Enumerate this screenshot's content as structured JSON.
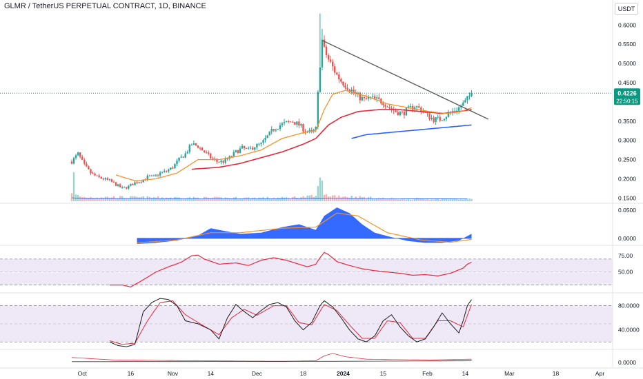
{
  "header": {
    "title": "GLMR / TetherUS PERPETUAL CONTRACT, 1D, BINANCE",
    "currency": "USDT"
  },
  "price_badge": {
    "price": "0.4226",
    "countdown": "22:50:15",
    "color": "#089981"
  },
  "colors": {
    "up": "#26a69a",
    "down": "#ef5350",
    "ema_fast": "#f5922a",
    "ema_slow": "#e8283a",
    "ema_long": "#2962ff",
    "trendline": "#5d5d5d",
    "macd": "#2962ff",
    "rsi": "#e8283a",
    "stoch_k": "#1a1a1a",
    "stoch_d": "#e8283a",
    "band_fill": "#efe8f7"
  },
  "chart_data": [
    {
      "type": "candlestick",
      "y_ticks": [
        "0.6000",
        "0.5500",
        "0.5000",
        "0.4500",
        "0.3500",
        "0.3000",
        "0.2500",
        "0.2000",
        "0.1500"
      ],
      "ylim": [
        0.14,
        0.64
      ],
      "x_ticks": [
        {
          "label": "Oct",
          "bold": false
        },
        {
          "label": "16",
          "bold": false
        },
        {
          "label": "Nov",
          "bold": false
        },
        {
          "label": "14",
          "bold": false
        },
        {
          "label": "Dec",
          "bold": false
        },
        {
          "label": "18",
          "bold": false
        },
        {
          "label": "2024",
          "bold": true
        },
        {
          "label": "15",
          "bold": false
        },
        {
          "label": "Feb",
          "bold": false
        },
        {
          "label": "14",
          "bold": false
        },
        {
          "label": "Mar",
          "bold": false
        },
        {
          "label": "18",
          "bold": false
        },
        {
          "label": "Apr",
          "bold": false
        }
      ],
      "last_price": 0.4226,
      "close_points": [
        [
          0,
          0.245
        ],
        [
          3,
          0.265
        ],
        [
          6,
          0.235
        ],
        [
          9,
          0.215
        ],
        [
          12,
          0.205
        ],
        [
          15,
          0.2
        ],
        [
          18,
          0.195
        ],
        [
          21,
          0.185
        ],
        [
          24,
          0.175
        ],
        [
          27,
          0.18
        ],
        [
          30,
          0.19
        ],
        [
          33,
          0.195
        ],
        [
          36,
          0.205
        ],
        [
          39,
          0.205
        ],
        [
          42,
          0.215
        ],
        [
          45,
          0.22
        ],
        [
          48,
          0.23
        ],
        [
          51,
          0.25
        ],
        [
          54,
          0.265
        ],
        [
          57,
          0.29
        ],
        [
          60,
          0.285
        ],
        [
          63,
          0.27
        ],
        [
          66,
          0.255
        ],
        [
          69,
          0.245
        ],
        [
          72,
          0.245
        ],
        [
          75,
          0.255
        ],
        [
          78,
          0.27
        ],
        [
          81,
          0.28
        ],
        [
          84,
          0.275
        ],
        [
          87,
          0.285
        ],
        [
          90,
          0.29
        ],
        [
          93,
          0.31
        ],
        [
          96,
          0.33
        ],
        [
          99,
          0.34
        ],
        [
          102,
          0.345
        ],
        [
          105,
          0.35
        ],
        [
          108,
          0.34
        ],
        [
          111,
          0.325
        ],
        [
          114,
          0.32
        ],
        [
          116,
          0.33
        ],
        [
          117,
          0.42
        ],
        [
          118,
          0.5
        ],
        [
          119,
          0.56
        ],
        [
          120,
          0.535
        ],
        [
          122,
          0.51
        ],
        [
          124,
          0.49
        ],
        [
          126,
          0.47
        ],
        [
          128,
          0.455
        ],
        [
          130,
          0.445
        ],
        [
          133,
          0.43
        ],
        [
          136,
          0.415
        ],
        [
          139,
          0.405
        ],
        [
          142,
          0.41
        ],
        [
          145,
          0.405
        ],
        [
          148,
          0.4
        ],
        [
          151,
          0.385
        ],
        [
          154,
          0.375
        ],
        [
          157,
          0.37
        ],
        [
          160,
          0.38
        ],
        [
          163,
          0.39
        ],
        [
          166,
          0.38
        ],
        [
          169,
          0.365
        ],
        [
          172,
          0.355
        ],
        [
          175,
          0.355
        ],
        [
          178,
          0.365
        ],
        [
          181,
          0.375
        ],
        [
          184,
          0.385
        ],
        [
          187,
          0.4
        ],
        [
          189,
          0.415
        ],
        [
          190,
          0.4226
        ]
      ],
      "ema_fast_points": [
        [
          21,
          0.21
        ],
        [
          30,
          0.195
        ],
        [
          40,
          0.2
        ],
        [
          50,
          0.215
        ],
        [
          60,
          0.25
        ],
        [
          70,
          0.25
        ],
        [
          80,
          0.26
        ],
        [
          90,
          0.275
        ],
        [
          100,
          0.305
        ],
        [
          110,
          0.32
        ],
        [
          116,
          0.325
        ],
        [
          120,
          0.38
        ],
        [
          124,
          0.42
        ],
        [
          130,
          0.43
        ],
        [
          140,
          0.415
        ],
        [
          150,
          0.395
        ],
        [
          160,
          0.385
        ],
        [
          170,
          0.375
        ],
        [
          178,
          0.37
        ],
        [
          185,
          0.375
        ],
        [
          190,
          0.385
        ]
      ],
      "ema_slow_points": [
        [
          57,
          0.225
        ],
        [
          70,
          0.23
        ],
        [
          80,
          0.24
        ],
        [
          90,
          0.255
        ],
        [
          100,
          0.27
        ],
        [
          110,
          0.29
        ],
        [
          116,
          0.305
        ],
        [
          122,
          0.34
        ],
        [
          128,
          0.36
        ],
        [
          136,
          0.375
        ],
        [
          146,
          0.38
        ],
        [
          156,
          0.38
        ],
        [
          166,
          0.375
        ],
        [
          176,
          0.37
        ],
        [
          184,
          0.375
        ],
        [
          190,
          0.38
        ]
      ],
      "ema_long_points": [
        [
          133,
          0.305
        ],
        [
          140,
          0.315
        ],
        [
          150,
          0.32
        ],
        [
          160,
          0.325
        ],
        [
          170,
          0.33
        ],
        [
          180,
          0.335
        ],
        [
          190,
          0.34
        ]
      ],
      "trendline": [
        [
          119,
          0.56
        ],
        [
          198,
          0.355
        ]
      ],
      "volume_points": [
        [
          0,
          0.25
        ],
        [
          1,
          0.6
        ],
        [
          2,
          0.15
        ],
        [
          5,
          0.1
        ],
        [
          20,
          0.1
        ],
        [
          60,
          0.08
        ],
        [
          100,
          0.08
        ],
        [
          116,
          0.12
        ],
        [
          117,
          0.3
        ],
        [
          118,
          0.9
        ],
        [
          119,
          0.4
        ],
        [
          120,
          0.15
        ],
        [
          150,
          0.06
        ],
        [
          190,
          0.05
        ]
      ]
    },
    {
      "type": "area",
      "y_ticks": [
        "0.0500",
        "0.0000"
      ],
      "ylim": [
        -0.01,
        0.06
      ],
      "macd_points": [
        [
          31,
          -0.01
        ],
        [
          40,
          -0.008
        ],
        [
          50,
          -0.004
        ],
        [
          60,
          0.005
        ],
        [
          66,
          0.018
        ],
        [
          70,
          0.015
        ],
        [
          80,
          0.008
        ],
        [
          90,
          0.01
        ],
        [
          100,
          0.02
        ],
        [
          108,
          0.025
        ],
        [
          112,
          0.02
        ],
        [
          116,
          0.015
        ],
        [
          120,
          0.04
        ],
        [
          126,
          0.055
        ],
        [
          132,
          0.045
        ],
        [
          138,
          0.025
        ],
        [
          144,
          0.01
        ],
        [
          152,
          0.002
        ],
        [
          160,
          -0.005
        ],
        [
          168,
          -0.008
        ],
        [
          176,
          -0.008
        ],
        [
          184,
          -0.004
        ],
        [
          190,
          0.008
        ]
      ],
      "signal_points": [
        [
          31,
          -0.008
        ],
        [
          50,
          -0.003
        ],
        [
          66,
          0.01
        ],
        [
          80,
          0.01
        ],
        [
          100,
          0.018
        ],
        [
          116,
          0.02
        ],
        [
          126,
          0.045
        ],
        [
          136,
          0.04
        ],
        [
          150,
          0.01
        ],
        [
          166,
          -0.003
        ],
        [
          180,
          -0.007
        ],
        [
          190,
          -0.002
        ]
      ]
    },
    {
      "type": "line",
      "y_ticks": [
        "75.00",
        "50.00"
      ],
      "ylim": [
        20,
        90
      ],
      "levels": [
        70,
        30
      ],
      "rsi_points": [
        [
          18,
          30
        ],
        [
          24,
          30
        ],
        [
          28,
          27
        ],
        [
          34,
          38
        ],
        [
          40,
          50
        ],
        [
          46,
          58
        ],
        [
          52,
          65
        ],
        [
          57,
          75
        ],
        [
          60,
          76
        ],
        [
          63,
          70
        ],
        [
          70,
          62
        ],
        [
          78,
          64
        ],
        [
          84,
          60
        ],
        [
          90,
          68
        ],
        [
          96,
          72
        ],
        [
          102,
          68
        ],
        [
          108,
          62
        ],
        [
          112,
          58
        ],
        [
          116,
          62
        ],
        [
          118,
          72
        ],
        [
          120,
          80
        ],
        [
          122,
          77
        ],
        [
          126,
          66
        ],
        [
          132,
          60
        ],
        [
          138,
          55
        ],
        [
          144,
          52
        ],
        [
          150,
          50
        ],
        [
          156,
          48
        ],
        [
          162,
          45
        ],
        [
          168,
          46
        ],
        [
          174,
          44
        ],
        [
          180,
          48
        ],
        [
          186,
          56
        ],
        [
          188,
          62
        ],
        [
          190,
          65
        ]
      ]
    },
    {
      "type": "line",
      "y_ticks": [
        "80.0000",
        "40.0000"
      ],
      "ylim": [
        10,
        100
      ],
      "levels": [
        80,
        20
      ],
      "stoch_k_points": [
        [
          18,
          20
        ],
        [
          22,
          14
        ],
        [
          26,
          12
        ],
        [
          30,
          16
        ],
        [
          34,
          70
        ],
        [
          38,
          85
        ],
        [
          42,
          92
        ],
        [
          46,
          90
        ],
        [
          50,
          80
        ],
        [
          54,
          55
        ],
        [
          60,
          50
        ],
        [
          66,
          40
        ],
        [
          70,
          25
        ],
        [
          74,
          60
        ],
        [
          78,
          82
        ],
        [
          82,
          70
        ],
        [
          86,
          60
        ],
        [
          90,
          72
        ],
        [
          94,
          82
        ],
        [
          98,
          85
        ],
        [
          102,
          78
        ],
        [
          106,
          55
        ],
        [
          110,
          40
        ],
        [
          114,
          52
        ],
        [
          118,
          80
        ],
        [
          120,
          88
        ],
        [
          124,
          78
        ],
        [
          128,
          60
        ],
        [
          132,
          40
        ],
        [
          136,
          25
        ],
        [
          140,
          20
        ],
        [
          144,
          30
        ],
        [
          148,
          55
        ],
        [
          152,
          65
        ],
        [
          156,
          45
        ],
        [
          160,
          30
        ],
        [
          164,
          20
        ],
        [
          168,
          25
        ],
        [
          172,
          45
        ],
        [
          176,
          68
        ],
        [
          180,
          50
        ],
        [
          184,
          35
        ],
        [
          186,
          55
        ],
        [
          188,
          80
        ],
        [
          190,
          90
        ]
      ],
      "stoch_d_points": [
        [
          18,
          22
        ],
        [
          24,
          16
        ],
        [
          30,
          18
        ],
        [
          36,
          55
        ],
        [
          42,
          85
        ],
        [
          48,
          88
        ],
        [
          54,
          65
        ],
        [
          62,
          48
        ],
        [
          70,
          32
        ],
        [
          76,
          60
        ],
        [
          82,
          74
        ],
        [
          88,
          64
        ],
        [
          96,
          80
        ],
        [
          102,
          80
        ],
        [
          108,
          52
        ],
        [
          114,
          48
        ],
        [
          120,
          82
        ],
        [
          126,
          72
        ],
        [
          132,
          48
        ],
        [
          138,
          26
        ],
        [
          144,
          26
        ],
        [
          150,
          55
        ],
        [
          156,
          52
        ],
        [
          162,
          26
        ],
        [
          168,
          26
        ],
        [
          174,
          55
        ],
        [
          180,
          55
        ],
        [
          186,
          45
        ],
        [
          190,
          82
        ]
      ]
    },
    {
      "type": "line",
      "y_ticks": [
        "0.0000"
      ],
      "ylim": [
        -0.5,
        1.5
      ],
      "osc_points": [
        [
          0,
          0.6
        ],
        [
          20,
          0.3
        ],
        [
          60,
          0.2
        ],
        [
          100,
          0.15
        ],
        [
          116,
          0.2
        ],
        [
          120,
          0.8
        ],
        [
          124,
          1.1
        ],
        [
          130,
          0.7
        ],
        [
          140,
          0.4
        ],
        [
          150,
          0.35
        ],
        [
          170,
          0.3
        ],
        [
          190,
          0.4
        ]
      ]
    }
  ]
}
